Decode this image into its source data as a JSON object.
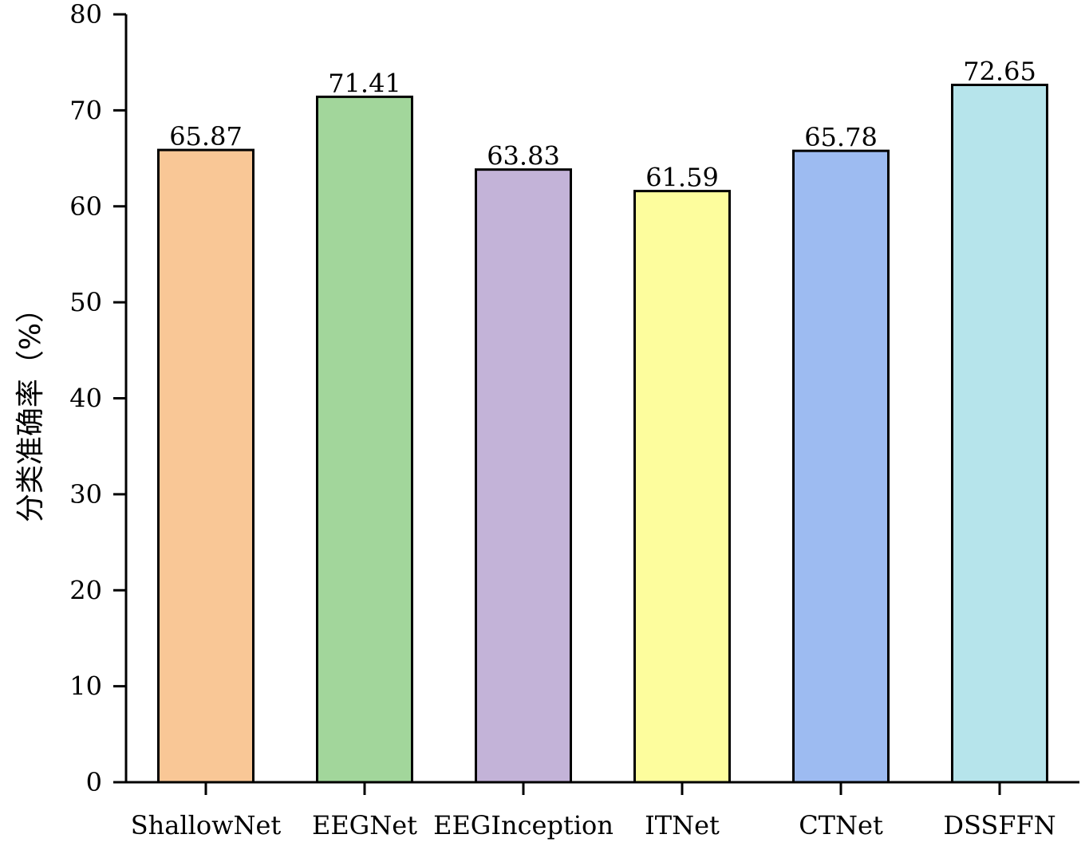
{
  "chart_data": {
    "type": "bar",
    "title": "",
    "xlabel": "",
    "ylabel": "分类准确率（%）",
    "ylim": [
      0,
      80
    ],
    "yticks": [
      0,
      10,
      20,
      30,
      40,
      50,
      60,
      70,
      80
    ],
    "grid": false,
    "categories": [
      "ShallowNet",
      "EEGNet",
      "EEGInception",
      "ITNet",
      "CTNet",
      "DSSFFN"
    ],
    "values": [
      65.87,
      71.41,
      63.83,
      61.59,
      65.78,
      72.65
    ],
    "value_labels": [
      "65.87",
      "71.41",
      "63.83",
      "61.59",
      "65.78",
      "72.65"
    ],
    "colors": [
      "#f9c796",
      "#a2d69b",
      "#c3b3d8",
      "#fdfd9d",
      "#9dbbf1",
      "#b6e4eb"
    ]
  }
}
